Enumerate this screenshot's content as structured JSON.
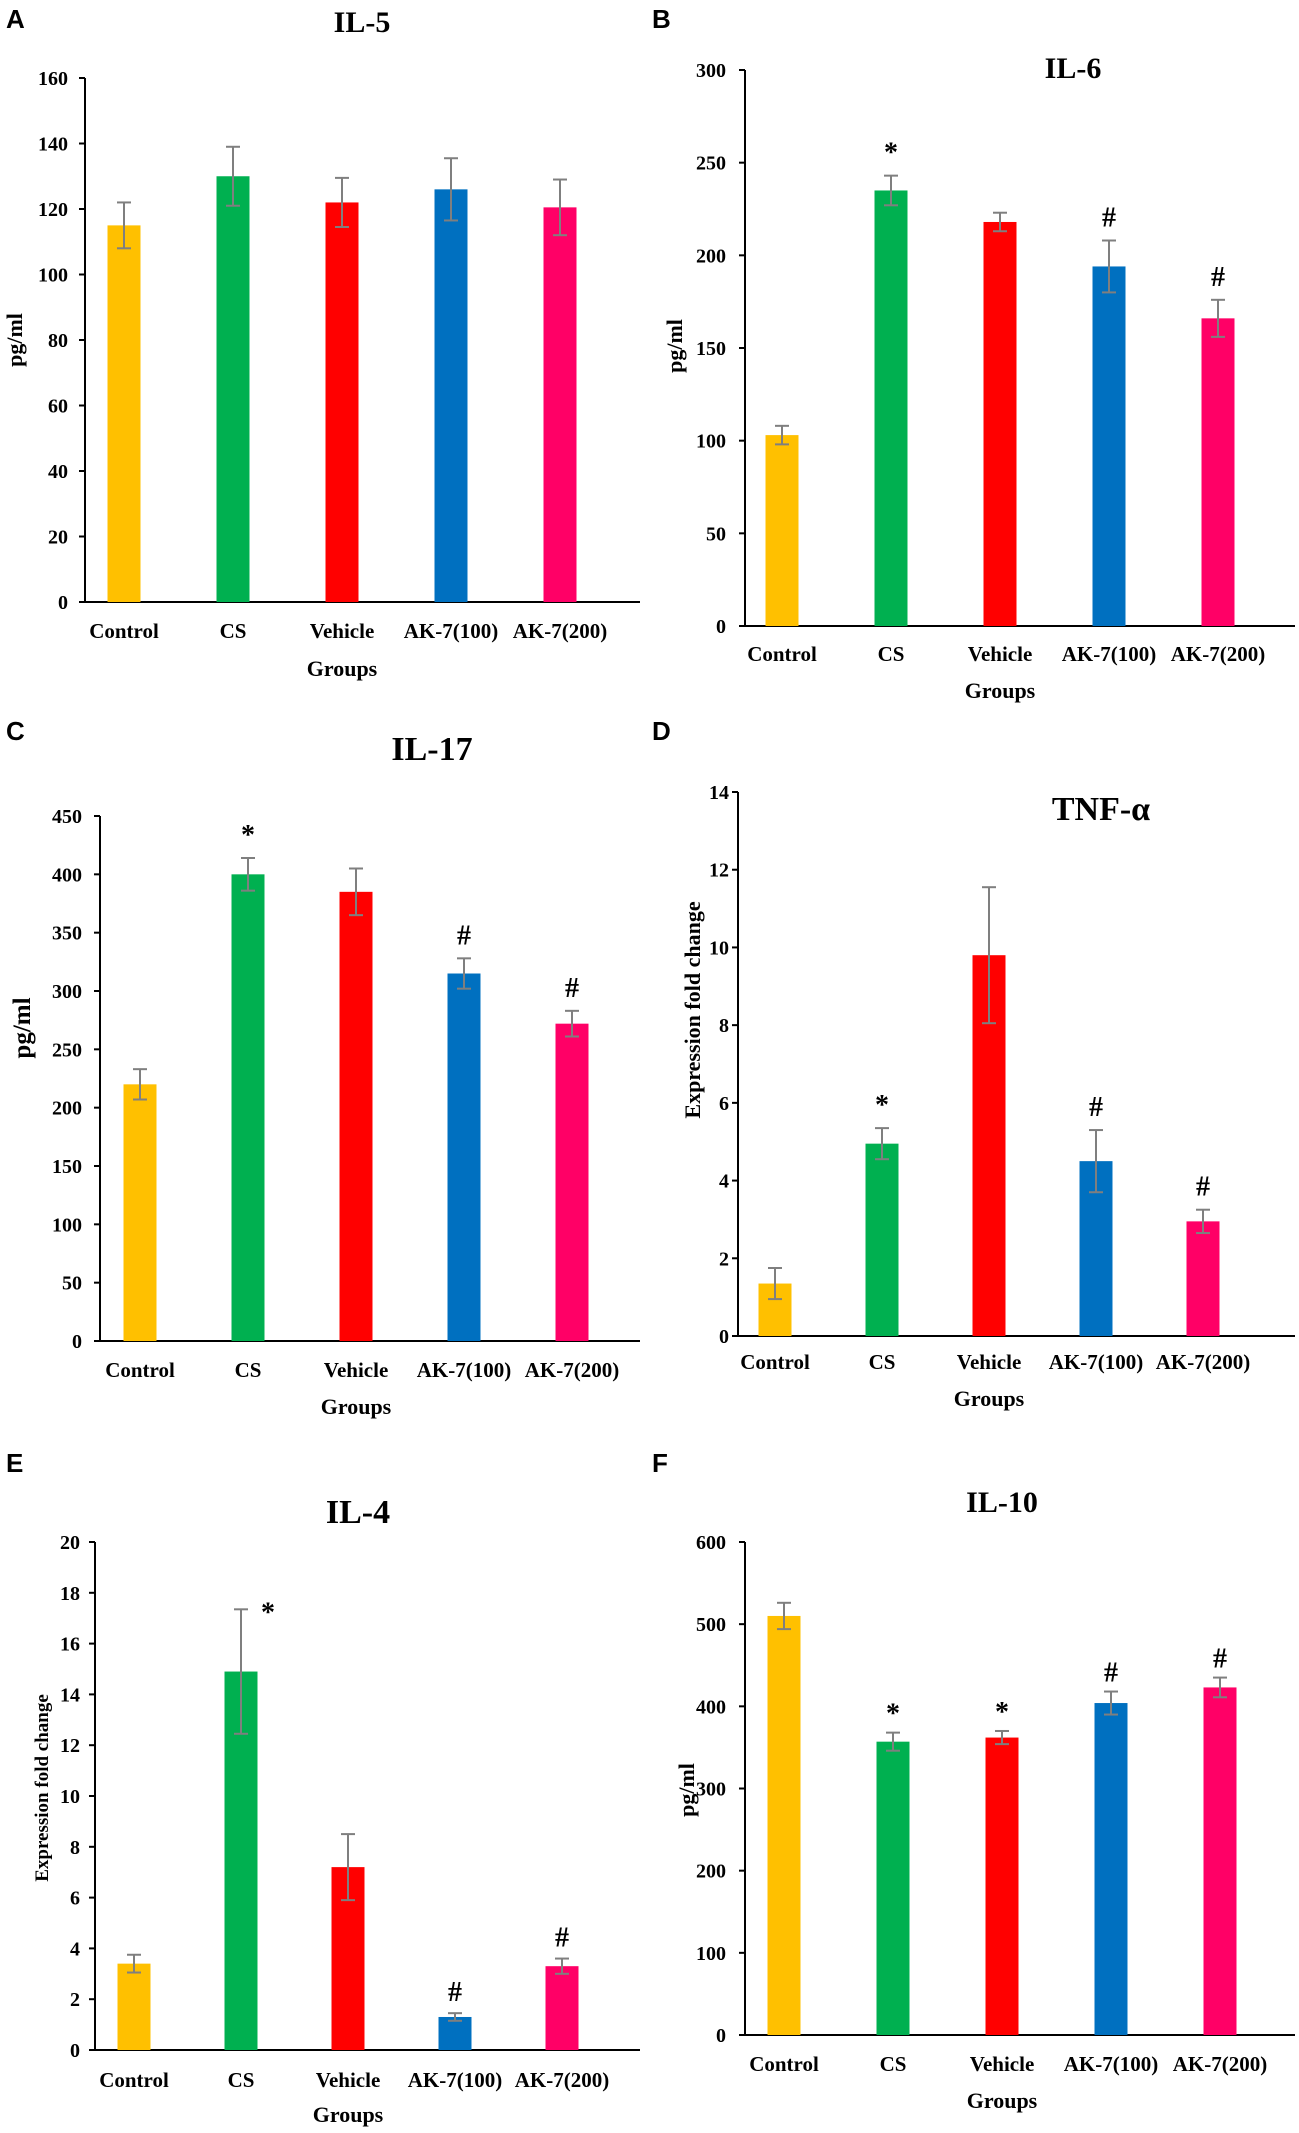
{
  "chart_data": [
    {
      "panel": "A",
      "type": "bar",
      "title": "IL-5",
      "xlabel": "Groups",
      "ylabel": "pg/ml",
      "ylim": [
        0,
        160
      ],
      "yticks": [
        0,
        20,
        40,
        60,
        80,
        100,
        120,
        140,
        160
      ],
      "yticks_labels": [
        "0",
        "20",
        "40",
        "60",
        "80",
        "100",
        "120",
        "140",
        "160"
      ],
      "categories": [
        "Control",
        "CS",
        "Vehicle",
        "AK-7(100)",
        "AK-7(200)"
      ],
      "values": [
        115,
        130,
        122,
        126,
        120.5
      ],
      "errors": [
        7,
        9,
        7.5,
        9.5,
        8.5
      ],
      "annotations": [
        "",
        "",
        "",
        "",
        ""
      ],
      "colors": [
        "#FFC000",
        "#00B050",
        "#FF0000",
        "#0070C0",
        "#FF0066"
      ]
    },
    {
      "panel": "B",
      "type": "bar",
      "title": "IL-6",
      "xlabel": "Groups",
      "ylabel": "pg/ml",
      "ylim": [
        0,
        300
      ],
      "yticks": [
        0,
        50,
        100,
        150,
        200,
        250,
        300
      ],
      "yticks_labels": [
        "0",
        "50",
        "100",
        "150",
        "200",
        "250",
        "300"
      ],
      "categories": [
        "Control",
        "CS",
        "Vehicle",
        "AK-7(100)",
        "AK-7(200)"
      ],
      "values": [
        103,
        235,
        218,
        194,
        166
      ],
      "errors": [
        5,
        8,
        5,
        14,
        10
      ],
      "annotations": [
        "",
        "*",
        "",
        "#",
        "#"
      ],
      "colors": [
        "#FFC000",
        "#00B050",
        "#FF0000",
        "#0070C0",
        "#FF0066"
      ]
    },
    {
      "panel": "C",
      "type": "bar",
      "title": "IL-17",
      "xlabel": "Groups",
      "ylabel": "pg/ml",
      "ylim": [
        0,
        450
      ],
      "yticks": [
        0,
        50,
        100,
        150,
        200,
        250,
        300,
        350,
        400,
        450
      ],
      "yticks_labels": [
        "0",
        "50",
        "100",
        "150",
        "200",
        "250",
        "300",
        "350",
        "400",
        "450"
      ],
      "categories": [
        "Control",
        "CS",
        "Vehicle",
        "AK-7(100)",
        "AK-7(200)"
      ],
      "values": [
        220,
        400,
        385,
        315,
        272
      ],
      "errors": [
        13,
        14,
        20,
        13,
        11
      ],
      "annotations": [
        "",
        "*",
        "",
        "#",
        "#"
      ],
      "colors": [
        "#FFC000",
        "#00B050",
        "#FF0000",
        "#0070C0",
        "#FF0066"
      ]
    },
    {
      "panel": "D",
      "type": "bar",
      "title": "TNF-α",
      "xlabel": "Groups",
      "ylabel": "Expression fold change",
      "ylim": [
        0,
        14
      ],
      "yticks": [
        0,
        2,
        4,
        6,
        8,
        10,
        12,
        14
      ],
      "yticks_labels": [
        "0",
        "2",
        "4",
        "6",
        "8",
        "10",
        "12",
        "14"
      ],
      "categories": [
        "Control",
        "CS",
        "Vehicle",
        "AK-7(100)",
        "AK-7(200)"
      ],
      "values": [
        1.35,
        4.95,
        9.8,
        4.5,
        2.95
      ],
      "errors": [
        0.4,
        0.4,
        1.75,
        0.8,
        0.3
      ],
      "annotations": [
        "",
        "*",
        "",
        "#",
        "#"
      ],
      "colors": [
        "#FFC000",
        "#00B050",
        "#FF0000",
        "#0070C0",
        "#FF0066"
      ]
    },
    {
      "panel": "E",
      "type": "bar",
      "title": "IL-4",
      "xlabel": "Groups",
      "ylabel": "Expression fold change",
      "ylim": [
        0,
        20
      ],
      "yticks": [
        0,
        2,
        4,
        6,
        8,
        10,
        12,
        14,
        16,
        18,
        20
      ],
      "yticks_labels": [
        "0",
        "2",
        "4",
        "6",
        "8",
        "10",
        "12",
        "14",
        "16",
        "18",
        "20"
      ],
      "categories": [
        "Control",
        "CS",
        "Vehicle",
        "AK-7(100)",
        "AK-7(200)"
      ],
      "values": [
        3.4,
        14.9,
        7.2,
        1.3,
        3.3
      ],
      "errors": [
        0.35,
        2.45,
        1.3,
        0.15,
        0.3
      ],
      "annotations": [
        "",
        "*",
        "",
        "#",
        "#"
      ],
      "colors": [
        "#FFC000",
        "#00B050",
        "#FF0000",
        "#0070C0",
        "#FF0066"
      ]
    },
    {
      "panel": "F",
      "type": "bar",
      "title": "IL-10",
      "xlabel": "Groups",
      "ylabel": "pg/ml",
      "ylim": [
        0,
        600
      ],
      "yticks": [
        0,
        100,
        200,
        300,
        400,
        500,
        600
      ],
      "yticks_labels": [
        "0",
        "100",
        "200",
        "300",
        "400",
        "500",
        "600"
      ],
      "categories": [
        "Control",
        "CS",
        "Vehicle",
        "AK-7(100)",
        "AK-7(200)"
      ],
      "values": [
        510,
        357,
        362,
        404,
        423
      ],
      "errors": [
        16,
        11,
        8,
        14,
        12
      ],
      "annotations": [
        "",
        "*",
        "*",
        "#",
        "#"
      ],
      "colors": [
        "#FFC000",
        "#00B050",
        "#FF0000",
        "#0070C0",
        "#FF0066"
      ]
    }
  ],
  "theme": {
    "axis_color": "#000000",
    "error_bar_color": "#7F7F7F"
  }
}
